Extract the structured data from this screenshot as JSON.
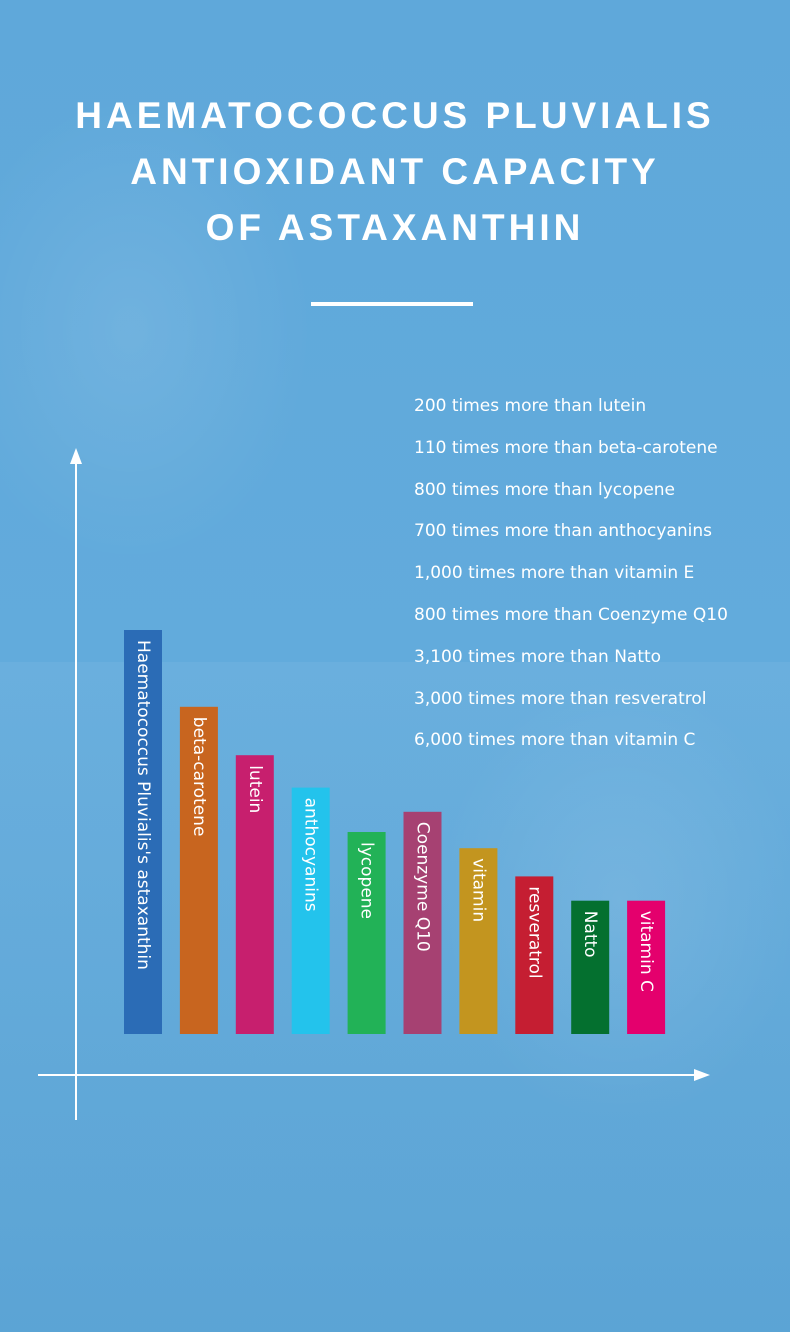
{
  "header": {
    "title_lines": [
      "HAEMATOCOCCUS PLUVIALIS",
      "ANTIOXIDANT CAPACITY",
      "OF ASTAXANTHIN"
    ]
  },
  "facts": [
    "200 times more than lutein",
    "110 times more than beta-carotene",
    "800 times more than lycopene",
    "700 times more than anthocyanins",
    "1,000 times more than vitamin E",
    "800 times more than Coenzyme Q10",
    "3,100 times more than Natto",
    "3,000 times more than resveratrol",
    "6,000 times more than vitamin C"
  ],
  "chart_data": {
    "type": "bar",
    "title": "",
    "xlabel": "",
    "ylabel": "",
    "ylim": [
      0,
      10
    ],
    "grid": false,
    "legend": "none",
    "categories": [
      "Haematococcus Pluvialis's astaxanthin",
      "beta-carotene",
      "lutein",
      "anthocyanins",
      "lycopene",
      "Coenzyme Q10",
      "vitamin",
      "resveratrol",
      "Natto",
      "vitamin C"
    ],
    "values": [
      10,
      8.1,
      6.9,
      6.1,
      5.0,
      5.5,
      4.6,
      3.9,
      3.3,
      3.3
    ],
    "colors": [
      "#2b6cb6",
      "#c8651f",
      "#c71f6e",
      "#23c3ec",
      "#22b257",
      "#a64172",
      "#c3951f",
      "#c51e32",
      "#04702f",
      "#e4006d"
    ]
  }
}
